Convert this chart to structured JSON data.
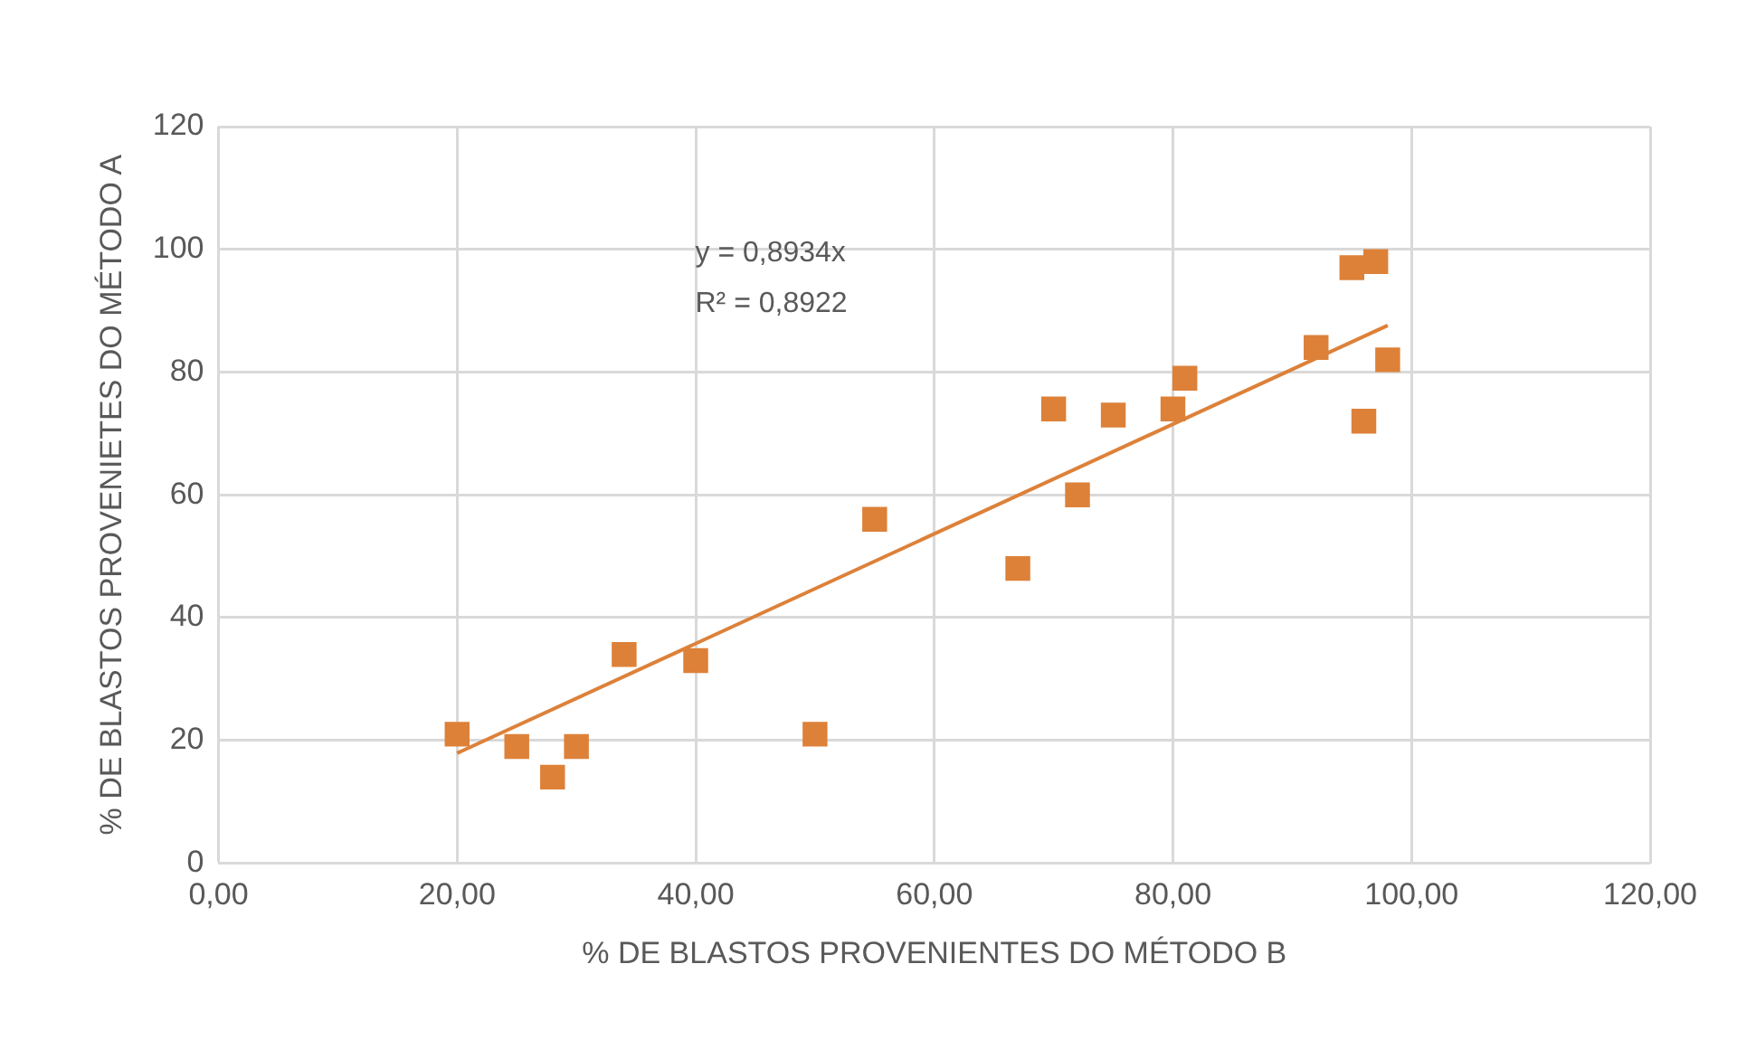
{
  "chart_data": {
    "type": "scatter",
    "xlabel": "% DE BLASTOS PROVENIENTES DO MÉTODO B",
    "ylabel": "% DE BLASTOS PROVENIETES DO MÉTODO A",
    "annotations": [
      "y = 0,8934x",
      "R² = 0,8922"
    ],
    "series": [
      {
        "marker": "square",
        "color": "#dd8139",
        "x": [
          20,
          25,
          28,
          30,
          34,
          40,
          50,
          55,
          67,
          70,
          72,
          75,
          80,
          81,
          92,
          95,
          97,
          96,
          98
        ],
        "values": [
          21,
          19,
          14,
          19,
          34,
          33,
          21,
          56,
          48,
          74,
          60,
          73,
          74,
          79,
          84,
          97,
          98,
          72,
          82
        ]
      },
      {
        "type": "line",
        "color": "#dd8139",
        "x": [
          20,
          98
        ],
        "values": [
          17.9,
          87.6
        ]
      }
    ],
    "xlim": [
      0,
      120
    ],
    "xticks": [
      {
        "value": 0,
        "label": "0,00"
      },
      {
        "value": 20,
        "label": "20,00"
      },
      {
        "value": 40,
        "label": "40,00"
      },
      {
        "value": 60,
        "label": "60,00"
      },
      {
        "value": 80,
        "label": "80,00"
      },
      {
        "value": 100,
        "label": "100,00"
      },
      {
        "value": 120,
        "label": "120,00"
      }
    ],
    "ylim": [
      0,
      120
    ],
    "yticks": [
      0,
      20,
      40,
      60,
      80,
      100,
      120
    ],
    "grid": true,
    "legend": false
  }
}
